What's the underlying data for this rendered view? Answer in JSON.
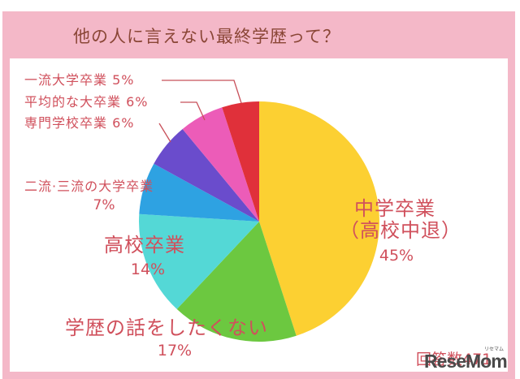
{
  "title": "他の人に言えない最終学歴って？",
  "chart_data": {
    "type": "pie",
    "title": "他の人に言えない最終学歴って？",
    "start_angle_deg": 0,
    "direction": "clockwise",
    "center": [
      319,
      273
    ],
    "radius": 148,
    "slices": [
      {
        "label": "中学卒業（高校中退）",
        "value": 45,
        "color": "#fcd032"
      },
      {
        "label": "学歴の話をしたくない",
        "value": 17,
        "color": "#6cc840"
      },
      {
        "label": "高校卒業",
        "value": 14,
        "color": "#54d8d6"
      },
      {
        "label": "二流・三流の大学卒業",
        "value": 7,
        "color": "#2ea2e2"
      },
      {
        "label": "専門学校卒業",
        "value": 6,
        "color": "#6a4ccc"
      },
      {
        "label": "平均的な大卒業",
        "value": 6,
        "color": "#ec5cb8"
      },
      {
        "label": "一流大学卒業",
        "value": 5,
        "color": "#e0303a"
      }
    ],
    "unit": "%",
    "respondents": 471
  },
  "labels": {
    "ichiryu": "一流大学卒業 5%",
    "heikin": "平均的な大卒業 6%",
    "senmon": "専門学校卒業 6%",
    "niryu": "二流·三流の大学卒業",
    "niryu_pct": "7%",
    "koukou": "高校卒業",
    "koukou_pct": "14%",
    "hanashi": "学歴の話をしたくない",
    "hanashi_pct": "17%",
    "chugaku_1": "中学卒業",
    "chugaku_2": "（高校中退）",
    "chugaku_pct": "45%"
  },
  "footer": {
    "respondents": "回答数471",
    "watermark": "ReseMom",
    "watermark_small": "リセマム"
  },
  "colors": {
    "frame": "#f4b8c8",
    "label_text": "#d0505c",
    "title_text": "#8a4636",
    "leader_line": "#c8505a"
  }
}
